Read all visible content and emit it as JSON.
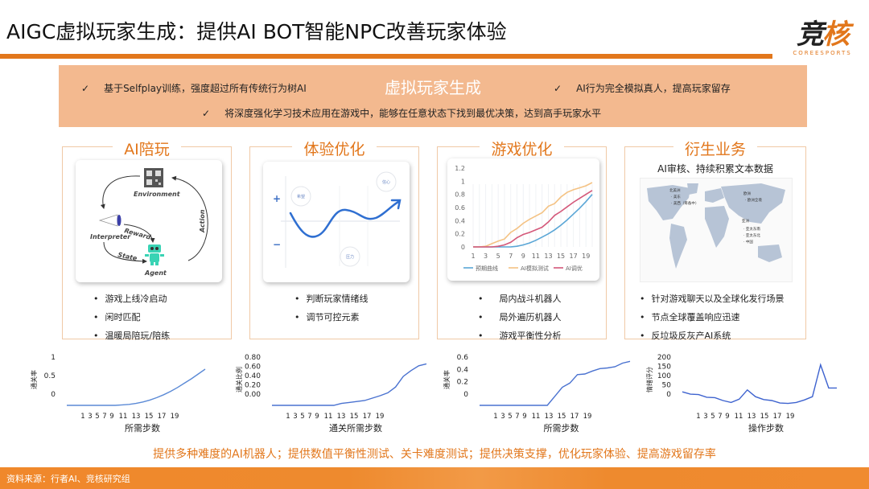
{
  "header": {
    "title": "AIGC虚拟玩家生成：提供AI BOT智能NPC改善玩家体验",
    "logo_cn_1": "竞",
    "logo_cn_2": "核",
    "logo_en": "COREESPORTS"
  },
  "banner": {
    "title": "虚拟玩家生成",
    "check": "✓",
    "points": [
      "基于Selfplay训练，强度超过所有传统行为树AI",
      "AI行为完全模拟真人，提高玩家留存",
      "将深度强化学习技术应用在游戏中，能够在任意状态下找到最优决策，达到高手玩家水平"
    ]
  },
  "cards": [
    {
      "title": "AI陪玩",
      "diagram": {
        "environment": "Environment",
        "interpreter": "Interpreter",
        "reward": "Reward",
        "state": "State",
        "action": "Action",
        "agent": "Agent"
      },
      "bullets": [
        "游戏上线冷启动",
        "闲时匹配",
        "温暖局陪玩/陪练"
      ]
    },
    {
      "title": "体验优化",
      "emotion": {
        "plus": "+",
        "minus": "−",
        "hope": "希望",
        "confidence": "信心",
        "pressure": "压力"
      },
      "bullets": [
        "判断玩家情绪线",
        "调节可控元素"
      ]
    },
    {
      "title": "游戏优化",
      "bullets": [
        "局内战斗机器人",
        "局外遍历机器人",
        "游戏平衡性分析"
      ]
    },
    {
      "title": "衍生业务",
      "subtitle": "AI审核、持续积累文本数据",
      "map_labels": {
        "na": "北美洲",
        "na1": "· 美东",
        "na2": "· 美西（筹备中）",
        "eu": "欧洲",
        "eu1": "· 欧洲全境",
        "as": "亚洲",
        "as1": "· 亚太东南",
        "as2": "· 亚太东北",
        "as3": "· 中国"
      },
      "bullets": [
        "针对游戏聊天以及全球化发行场景",
        "节点全球覆盖响应迅速",
        "反垃圾反灰产AI系统"
      ]
    }
  ],
  "bullet_symbol": "•",
  "chart_data": [
    {
      "id": "game-opt",
      "type": "line",
      "title": "",
      "xlabel": "",
      "ylabel": "",
      "x": [
        1,
        2,
        3,
        4,
        5,
        6,
        7,
        8,
        9,
        10,
        11,
        12,
        13,
        14,
        15,
        16,
        17,
        18,
        19,
        20
      ],
      "x_ticks": [
        "1",
        "3",
        "5",
        "7",
        "9",
        "11",
        "13",
        "15",
        "17",
        "19"
      ],
      "y_ticks": [
        "0",
        "0.2",
        "0.4",
        "0.6",
        "0.8",
        "1",
        "1.2"
      ],
      "ylim": [
        0,
        1.2
      ],
      "grid": false,
      "legend_position": "bottom",
      "series": [
        {
          "name": "预期曲线",
          "color": "#5aa6d6",
          "values": [
            0,
            0,
            0,
            0,
            0,
            0,
            0,
            0.01,
            0.03,
            0.06,
            0.1,
            0.15,
            0.2,
            0.26,
            0.33,
            0.41,
            0.5,
            0.59,
            0.69,
            0.8
          ]
        },
        {
          "name": "AI模拟测试",
          "color": "#f4c283",
          "values": [
            0,
            0,
            0.01,
            0.05,
            0.09,
            0.12,
            0.22,
            0.28,
            0.36,
            0.42,
            0.47,
            0.52,
            0.62,
            0.66,
            0.76,
            0.83,
            0.87,
            0.9,
            0.93,
            0.98
          ]
        },
        {
          "name": "AI调优",
          "color": "#d4587a",
          "values": [
            0,
            0,
            0,
            0,
            0.01,
            0.03,
            0.07,
            0.14,
            0.19,
            0.22,
            0.26,
            0.3,
            0.38,
            0.48,
            0.54,
            0.61,
            0.68,
            0.74,
            0.8,
            0.86
          ]
        }
      ]
    },
    {
      "id": "mini1",
      "type": "line",
      "xlabel": "所需步数",
      "ylabel": "通关率",
      "x_ticks": [
        "1",
        "3",
        "5",
        "7",
        "9",
        "11",
        "13",
        "15",
        "17",
        "19"
      ],
      "y_ticks": [
        "0",
        "0.5",
        "1"
      ],
      "ylim": [
        0,
        1
      ],
      "color": "#5b8ad6",
      "values": [
        0,
        0,
        0,
        0,
        0,
        0,
        0,
        0,
        0.01,
        0.02,
        0.04,
        0.07,
        0.11,
        0.16,
        0.22,
        0.29,
        0.37,
        0.46,
        0.55,
        0.65,
        0.75
      ]
    },
    {
      "id": "mini2",
      "type": "line",
      "xlabel": "通关所需步数",
      "ylabel": "通关比例",
      "x_ticks": [
        "1",
        "3",
        "5",
        "7",
        "9",
        "11",
        "13",
        "15",
        "17",
        "19"
      ],
      "y_ticks": [
        "0.00",
        "0.20",
        "0.40",
        "0.60",
        "0.80"
      ],
      "ylim": [
        -0.2,
        0.8
      ],
      "color": "#4a72d0",
      "values": [
        -0.2,
        -0.2,
        -0.2,
        -0.2,
        -0.2,
        -0.2,
        -0.2,
        -0.2,
        -0.2,
        -0.16,
        -0.14,
        -0.12,
        -0.1,
        -0.05,
        0,
        0.06,
        0.18,
        0.4,
        0.52,
        0.62,
        0.66
      ]
    },
    {
      "id": "mini3",
      "type": "line",
      "xlabel": "所需步数",
      "ylabel": "通关率",
      "x_ticks": [
        "1",
        "3",
        "5",
        "7",
        "9",
        "11",
        "13",
        "15",
        "17",
        "19"
      ],
      "y_ticks": [
        "0",
        "0.2",
        "0.4",
        "0.6"
      ],
      "ylim": [
        -0.2,
        0.6
      ],
      "color": "#4a72d0",
      "values": [
        -0.2,
        -0.2,
        -0.2,
        -0.2,
        -0.2,
        -0.2,
        -0.2,
        -0.2,
        -0.2,
        -0.2,
        -0.05,
        0.1,
        0.17,
        0.31,
        0.32,
        0.37,
        0.41,
        0.42,
        0.44,
        0.5,
        0.53
      ]
    },
    {
      "id": "mini4",
      "type": "line",
      "xlabel": "操作步数",
      "ylabel": "情绪评分",
      "x_ticks": [
        "1",
        "3",
        "5",
        "7",
        "9",
        "11",
        "13",
        "15",
        "17",
        "19"
      ],
      "y_ticks": [
        "0",
        "50",
        "100",
        "150",
        "200"
      ],
      "ylim": [
        -50,
        200
      ],
      "color": "#3e63cf",
      "values": [
        20,
        8,
        6,
        -8,
        -10,
        -25,
        -35,
        -18,
        30,
        -5,
        -20,
        -25,
        -38,
        -40,
        -35,
        -22,
        -5,
        160,
        40,
        40
      ]
    }
  ],
  "bottom_note": "提供多种难度的AI机器人；提供数值平衡性测试、关卡难度测试；提供决策支撑，优化玩家体验、提高游戏留存率",
  "footer": {
    "source": "资料来源：行者AI、竞核研究组"
  },
  "colors": {
    "accent": "#e2771c",
    "banner_bg": "#f3b98f"
  }
}
